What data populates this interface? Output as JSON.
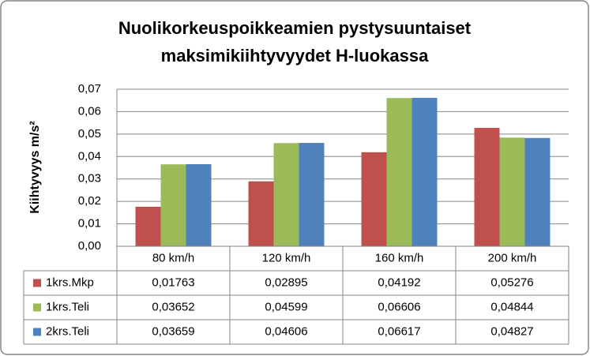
{
  "chart_data": {
    "type": "bar",
    "title": [
      "Nuolikorkeuspoikkeamien pystysuuntaiset",
      "maksimikiihtyvyydet H-luokassa"
    ],
    "y_label": "Kiihtyvyys m/s²",
    "categories": [
      "80 km/h",
      "120 km/h",
      "160 km/h",
      "200 km/h"
    ],
    "series": [
      {
        "name": "1krs.Mkp",
        "color": "#c0504d",
        "values": [
          0.01763,
          0.02895,
          0.04192,
          0.05276
        ],
        "value_labels": [
          "0,01763",
          "0,02895",
          "0,04192",
          "0,05276"
        ]
      },
      {
        "name": "1krs.Teli",
        "color": "#9bbb59",
        "values": [
          0.03652,
          0.04599,
          0.06606,
          0.04844
        ],
        "value_labels": [
          "0,03652",
          "0,04599",
          "0,06606",
          "0,04844"
        ]
      },
      {
        "name": "2krs.Teli",
        "color": "#4f81bd",
        "values": [
          0.03659,
          0.04606,
          0.06617,
          0.04827
        ],
        "value_labels": [
          "0,03659",
          "0,04606",
          "0,06617",
          "0,04827"
        ]
      }
    ],
    "ylim": [
      0,
      0.07
    ],
    "yticks": [
      {
        "value": 0,
        "label": "0,00"
      },
      {
        "value": 0.01,
        "label": "0,01"
      },
      {
        "value": 0.02,
        "label": "0,02"
      },
      {
        "value": 0.03,
        "label": "0,03"
      },
      {
        "value": 0.04,
        "label": "0,04"
      },
      {
        "value": 0.05,
        "label": "0,05"
      },
      {
        "value": 0.06,
        "label": "0,06"
      },
      {
        "value": 0.07,
        "label": "0,07"
      }
    ],
    "grid": true
  }
}
